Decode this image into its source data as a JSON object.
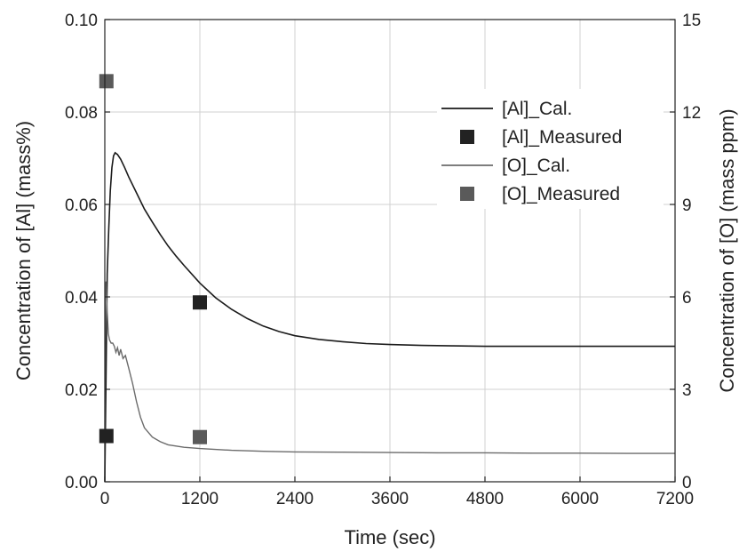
{
  "chart_data": {
    "type": "line",
    "title": "",
    "xlabel": "Time (sec)",
    "ylabel_left": "Concentration of [Al] (mass%)",
    "ylabel_right": "Concentration of [O] (mass ppm)",
    "xlim": [
      0,
      7200
    ],
    "ylim_left": [
      0,
      0.1
    ],
    "ylim_right": [
      0,
      15
    ],
    "x_ticks": [
      0,
      1200,
      2400,
      3600,
      4800,
      6000,
      7200
    ],
    "x_tick_labels": [
      "0",
      "1200",
      "2400",
      "3600",
      "4800",
      "6000",
      "7200"
    ],
    "y_left_ticks": [
      0,
      0.02,
      0.04,
      0.06,
      0.08,
      0.1
    ],
    "y_left_tick_labels": [
      "0.00",
      "0.02",
      "0.04",
      "0.06",
      "0.08",
      "0.10"
    ],
    "y_right_ticks": [
      0,
      3,
      6,
      9,
      12,
      15
    ],
    "y_right_tick_labels": [
      "0",
      "3",
      "6",
      "9",
      "12",
      "15"
    ],
    "grid": true,
    "legend_position": "top-right",
    "series": [
      {
        "name": "[Al]_Cal.",
        "kind": "line",
        "axis": "left",
        "color": "#1a1a1a",
        "x": [
          0,
          30,
          50,
          70,
          90,
          110,
          130,
          160,
          200,
          250,
          300,
          400,
          500,
          600,
          700,
          800,
          900,
          1000,
          1200,
          1400,
          1600,
          1800,
          2000,
          2200,
          2400,
          2700,
          3000,
          3300,
          3600,
          4000,
          4400,
          4800,
          5400,
          6000,
          6600,
          7200
        ],
        "y": [
          0.0,
          0.045,
          0.055,
          0.063,
          0.068,
          0.0705,
          0.0712,
          0.0708,
          0.0698,
          0.068,
          0.066,
          0.0625,
          0.059,
          0.0562,
          0.0535,
          0.051,
          0.0488,
          0.0468,
          0.043,
          0.0398,
          0.0373,
          0.0353,
          0.0337,
          0.0325,
          0.0316,
          0.0308,
          0.0303,
          0.0299,
          0.0297,
          0.0295,
          0.0294,
          0.0293,
          0.0293,
          0.0293,
          0.0293,
          0.0293
        ]
      },
      {
        "name": "[Al]_Measured",
        "kind": "marker",
        "axis": "left",
        "color": "#222222",
        "x": [
          20,
          1200
        ],
        "y": [
          0.0099,
          0.0388
        ]
      },
      {
        "name": "[O]_Cal.",
        "kind": "line",
        "axis": "right",
        "color": "#6b6b6b",
        "x": [
          0,
          5,
          15,
          30,
          45,
          60,
          80,
          100,
          120,
          140,
          160,
          180,
          200,
          230,
          260,
          300,
          350,
          400,
          450,
          500,
          600,
          700,
          800,
          1000,
          1200,
          1600,
          2000,
          2400,
          3000,
          3600,
          4200,
          4800,
          5400,
          6000,
          6600,
          7200
        ],
        "y": [
          0.0,
          6.0,
          6.5,
          5.5,
          4.8,
          4.6,
          4.5,
          4.5,
          4.4,
          4.2,
          4.35,
          4.1,
          4.3,
          4.0,
          4.1,
          3.7,
          3.2,
          2.6,
          2.1,
          1.75,
          1.45,
          1.3,
          1.2,
          1.12,
          1.08,
          1.02,
          0.99,
          0.97,
          0.96,
          0.95,
          0.94,
          0.94,
          0.93,
          0.93,
          0.92,
          0.92
        ]
      },
      {
        "name": "[O]_Measured",
        "kind": "marker",
        "axis": "right",
        "color": "#5a5a5a",
        "x": [
          20,
          1200
        ],
        "y": [
          13.0,
          1.45
        ]
      }
    ]
  }
}
